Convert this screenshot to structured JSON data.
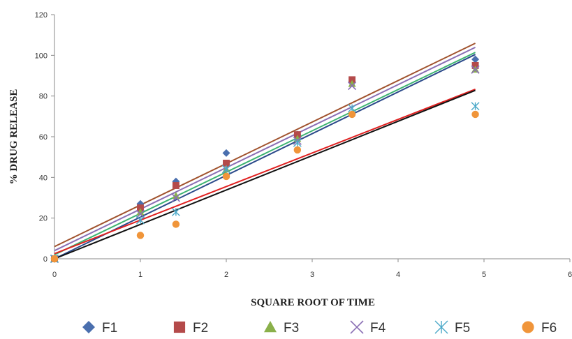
{
  "chart_data": {
    "type": "scatter",
    "xlabel": "SQUARE ROOT OF TIME",
    "ylabel": "% DRUG RELEASE",
    "xlim": [
      0,
      6
    ],
    "ylim": [
      0,
      120
    ],
    "xticks": [
      0,
      1,
      2,
      3,
      4,
      5,
      6
    ],
    "yticks": [
      0,
      20,
      40,
      60,
      80,
      100,
      120
    ],
    "grid": false,
    "legend_position": "bottom",
    "x": [
      0,
      1,
      1.414,
      2,
      2.828,
      3.464,
      4.899
    ],
    "series": [
      {
        "name": "F1",
        "color": "#4a6fae",
        "marker": "diamond",
        "values": [
          0,
          27,
          38,
          52,
          61,
          87,
          98
        ],
        "trendline": {
          "slope": 20.5,
          "intercept": 0,
          "color": "#2b4a8a"
        }
      },
      {
        "name": "F2",
        "color": "#b44a4a",
        "marker": "square",
        "values": [
          0,
          25,
          36,
          47,
          61,
          88,
          95
        ],
        "trendline": {
          "slope": 20.4,
          "intercept": 6,
          "color": "#a0522d"
        }
      },
      {
        "name": "F3",
        "color": "#8ab04a",
        "marker": "triangle",
        "values": [
          0,
          23,
          31,
          44,
          59,
          86,
          93
        ],
        "trendline": {
          "slope": 20.3,
          "intercept": 2,
          "color": "#3cb371"
        }
      },
      {
        "name": "F4",
        "color": "#8a6fb4",
        "marker": "x",
        "values": [
          0,
          22,
          30,
          44,
          58,
          85,
          93
        ],
        "trendline": {
          "slope": 20.4,
          "intercept": 4,
          "color": "#8a6fb4"
        }
      },
      {
        "name": "F5",
        "color": "#4aa8c8",
        "marker": "asterisk",
        "values": [
          0,
          19,
          23,
          44,
          57,
          74,
          75
        ],
        "trendline": {
          "slope": 16.5,
          "intercept": 2.5,
          "color": "#e02020"
        }
      },
      {
        "name": "F6",
        "color": "#f0953a",
        "marker": "circle",
        "values": [
          0,
          11.5,
          17,
          40.5,
          53.5,
          71,
          71
        ],
        "trendline": {
          "slope": 16.9,
          "intercept": 0,
          "color": "#111111"
        }
      }
    ]
  }
}
